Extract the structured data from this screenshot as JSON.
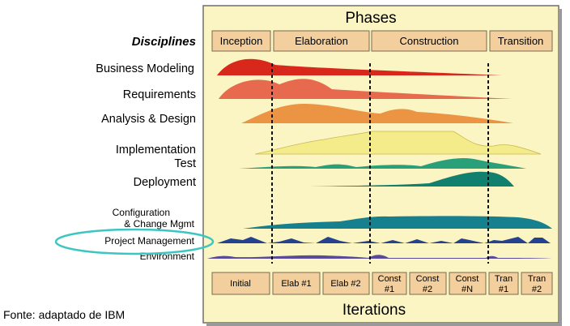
{
  "title_phases": "Phases",
  "title_iterations": "Iterations",
  "disciplines_heading": "Disciplines",
  "phases": [
    "Inception",
    "Elaboration",
    "Construction",
    "Transition"
  ],
  "disciplines": [
    "Business Modeling",
    "Requirements",
    "Analysis & Design",
    "Implementation",
    "Test",
    "Deployment",
    "Configuration",
    "& Change Mgmt",
    "Project Management",
    "Environment"
  ],
  "iterations": [
    [
      "Initial"
    ],
    [
      "Elab #1"
    ],
    [
      "Elab #2"
    ],
    [
      "Const",
      "#1"
    ],
    [
      "Const",
      "#2"
    ],
    [
      "Const",
      "#N"
    ],
    [
      "Tran",
      "#1"
    ],
    [
      "Tran",
      "#2"
    ]
  ],
  "caption": "Fonte: adaptado de IBM",
  "colors": {
    "panel_bg": "#fbf5c4",
    "box_fill": "#f2cf9c",
    "highlight": "#3cc6c2",
    "business_modeling": "#d8281c",
    "requirements": "#e86a4e",
    "analysis_design": "#eb9544",
    "implementation": "#f4ec8a",
    "test": "#2aa07a",
    "deployment": "#12806f",
    "config_change": "#17808f",
    "project_management": "#24428f",
    "environment": "#5a4a9a"
  }
}
